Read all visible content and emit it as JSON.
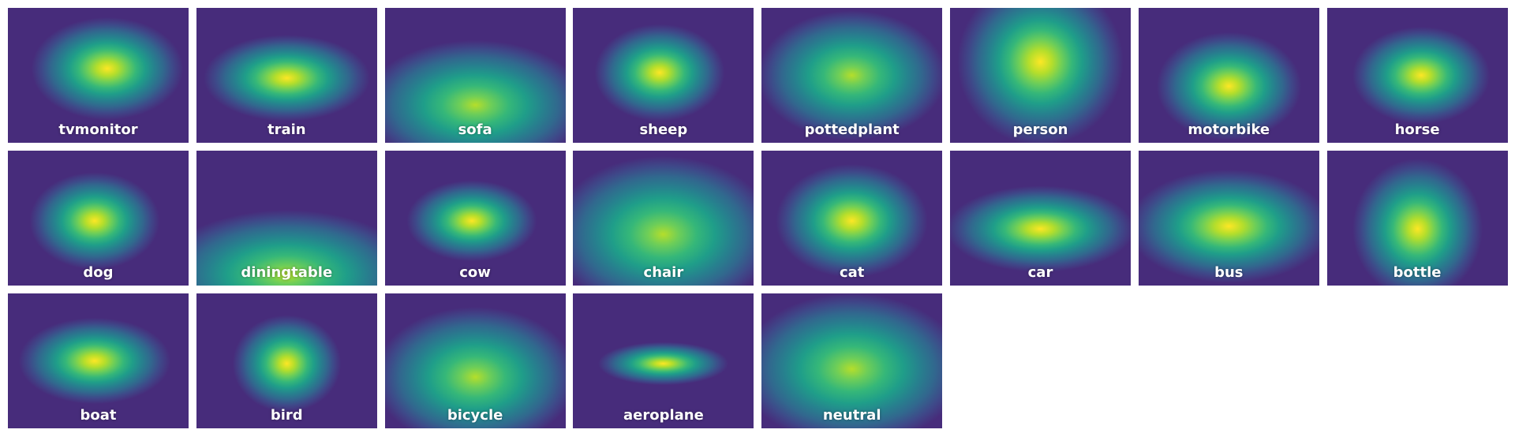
{
  "tiles": [
    {
      "label": "tvmonitor"
    },
    {
      "label": "train"
    },
    {
      "label": "sofa"
    },
    {
      "label": "sheep"
    },
    {
      "label": "pottedplant"
    },
    {
      "label": "person"
    },
    {
      "label": "motorbike"
    },
    {
      "label": "horse"
    },
    {
      "label": "dog"
    },
    {
      "label": "diningtable"
    },
    {
      "label": "cow"
    },
    {
      "label": "chair"
    },
    {
      "label": "cat"
    },
    {
      "label": "car"
    },
    {
      "label": "bus"
    },
    {
      "label": "bottle"
    },
    {
      "label": "boat"
    },
    {
      "label": "bird"
    },
    {
      "label": "bicycle"
    },
    {
      "label": "aeroplane"
    },
    {
      "label": "neutral"
    }
  ]
}
